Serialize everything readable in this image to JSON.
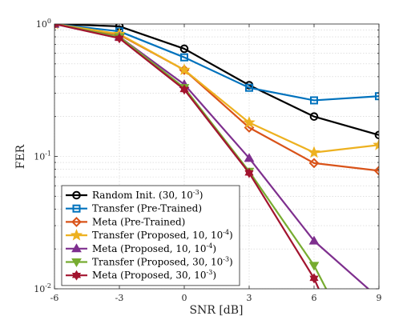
{
  "chart_data": {
    "type": "line",
    "title": "",
    "xlabel": "SNR [dB]",
    "ylabel": "FER",
    "xlim": [
      -6,
      9
    ],
    "ylim": [
      0.01,
      1
    ],
    "yscale": "log",
    "grid": true,
    "legend_position": "bottom-left",
    "x_ticks": [
      -6,
      -3,
      0,
      3,
      6,
      9
    ],
    "x_tick_labels": [
      "-6",
      "-3",
      "0",
      "3",
      "6",
      "9"
    ],
    "y_ticks": [
      0.01,
      0.1,
      1
    ],
    "y_tick_labels": [
      {
        "base": "10",
        "exp": "-2"
      },
      {
        "base": "10",
        "exp": "-1"
      },
      {
        "base": "10",
        "exp": "0"
      }
    ],
    "series": [
      {
        "name": "Random Init. (30, 10",
        "sup": "-3",
        "suffix": ")",
        "color": "#000000",
        "marker": "circle",
        "x": [
          -6,
          -3,
          0,
          3,
          6,
          9
        ],
        "y": [
          1.0,
          0.96,
          0.65,
          0.345,
          0.2,
          0.145
        ]
      },
      {
        "name": "Transfer (Pre-Trained)",
        "sup": "",
        "suffix": "",
        "color": "#0072bd",
        "marker": "square",
        "x": [
          -6,
          -3,
          0,
          3,
          6,
          9
        ],
        "y": [
          1.0,
          0.88,
          0.56,
          0.33,
          0.265,
          0.285
        ]
      },
      {
        "name": "Meta (Pre-Trained)",
        "sup": "",
        "suffix": "",
        "color": "#d95319",
        "marker": "diamond",
        "x": [
          -6,
          -3,
          0,
          3,
          6,
          9
        ],
        "y": [
          1.0,
          0.83,
          0.45,
          0.165,
          0.089,
          0.078
        ]
      },
      {
        "name": "Transfer (Proposed, 10, 10",
        "sup": "-4",
        "suffix": ")",
        "color": "#edb120",
        "marker": "star",
        "x": [
          -6,
          -3,
          0,
          3,
          6,
          9
        ],
        "y": [
          1.0,
          0.84,
          0.45,
          0.18,
          0.107,
          0.122
        ]
      },
      {
        "name": "Meta (Proposed, 10, 10",
        "sup": "-4",
        "suffix": ")",
        "color": "#7e2f8e",
        "marker": "triangle-up",
        "x": [
          -6,
          -3,
          0,
          3,
          6,
          8.6
        ],
        "y": [
          1.0,
          0.8,
          0.35,
          0.097,
          0.023,
          0.0097
        ]
      },
      {
        "name": "Transfer (Proposed, 30, 10",
        "sup": "-3",
        "suffix": ")",
        "color": "#77ac30",
        "marker": "triangle-down",
        "x": [
          -6,
          -3,
          0,
          3,
          6,
          6.6
        ],
        "y": [
          1.0,
          0.8,
          0.33,
          0.077,
          0.015,
          0.0097
        ]
      },
      {
        "name": "Meta (Proposed, 30, 10",
        "sup": "-3",
        "suffix": ")",
        "color": "#a2142f",
        "marker": "hexagram",
        "x": [
          -6,
          -3,
          0,
          3,
          6,
          6.25
        ],
        "y": [
          1.0,
          0.78,
          0.32,
          0.075,
          0.012,
          0.0097
        ]
      }
    ]
  }
}
